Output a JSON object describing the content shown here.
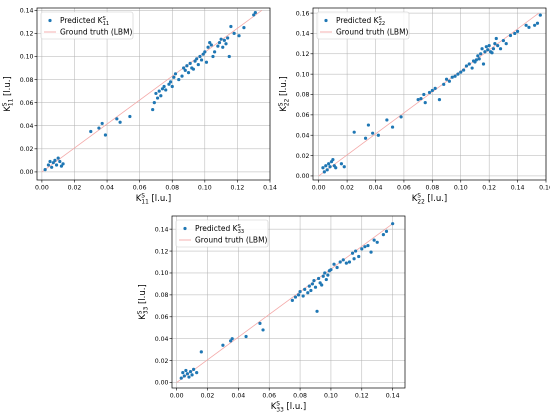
{
  "colors": {
    "points": "#1f77b4",
    "line": "#f4a9a8",
    "grid": "#b0b0b0"
  },
  "chart_data": [
    {
      "type": "scatter",
      "legend_position": "top-left",
      "grid": true,
      "xlabel": {
        "main": "K",
        "sup": "S",
        "sub": "11",
        "unit": "[l.u.]"
      },
      "ylabel": {
        "main": "K",
        "sup": "S",
        "sub": "11",
        "unit": "[l.u.]"
      },
      "legend": {
        "points_main": "Predicted K",
        "points_sup": "S",
        "points_sub": "11",
        "line": "Ground truth (LBM)"
      },
      "xlim": [
        -0.003,
        0.14
      ],
      "ylim": [
        -0.007,
        0.142
      ],
      "xticks": [
        "0.00",
        "0.02",
        "0.04",
        "0.06",
        "0.08",
        "0.10",
        "0.12",
        "0.14"
      ],
      "yticks": [
        "0.00",
        "0.02",
        "0.04",
        "0.06",
        "0.08",
        "0.10",
        "0.12",
        "0.14"
      ],
      "line": [
        [
          0,
          0
        ],
        [
          0.135,
          0.14
        ]
      ],
      "points": [
        [
          0.002,
          0.002
        ],
        [
          0.004,
          0.006
        ],
        [
          0.005,
          0.009
        ],
        [
          0.006,
          0.004
        ],
        [
          0.007,
          0.008
        ],
        [
          0.008,
          0.01
        ],
        [
          0.009,
          0.006
        ],
        [
          0.01,
          0.012
        ],
        [
          0.011,
          0.009
        ],
        [
          0.012,
          0.005
        ],
        [
          0.013,
          0.007
        ],
        [
          0.03,
          0.035
        ],
        [
          0.035,
          0.038
        ],
        [
          0.037,
          0.042
        ],
        [
          0.039,
          0.032
        ],
        [
          0.046,
          0.046
        ],
        [
          0.048,
          0.043
        ],
        [
          0.054,
          0.048
        ],
        [
          0.068,
          0.054
        ],
        [
          0.069,
          0.06
        ],
        [
          0.07,
          0.068
        ],
        [
          0.071,
          0.064
        ],
        [
          0.072,
          0.07
        ],
        [
          0.073,
          0.066
        ],
        [
          0.074,
          0.072
        ],
        [
          0.075,
          0.074
        ],
        [
          0.076,
          0.071
        ],
        [
          0.078,
          0.076
        ],
        [
          0.079,
          0.078
        ],
        [
          0.08,
          0.074
        ],
        [
          0.081,
          0.082
        ],
        [
          0.082,
          0.085
        ],
        [
          0.084,
          0.08
        ],
        [
          0.086,
          0.083
        ],
        [
          0.087,
          0.09
        ],
        [
          0.088,
          0.088
        ],
        [
          0.089,
          0.092
        ],
        [
          0.09,
          0.086
        ],
        [
          0.091,
          0.094
        ],
        [
          0.092,
          0.09
        ],
        [
          0.093,
          0.089
        ],
        [
          0.094,
          0.096
        ],
        [
          0.095,
          0.098
        ],
        [
          0.096,
          0.093
        ],
        [
          0.097,
          0.1
        ],
        [
          0.098,
          0.097
        ],
        [
          0.099,
          0.102
        ],
        [
          0.1,
          0.104
        ],
        [
          0.101,
          0.095
        ],
        [
          0.102,
          0.108
        ],
        [
          0.103,
          0.112
        ],
        [
          0.104,
          0.11
        ],
        [
          0.105,
          0.1
        ],
        [
          0.106,
          0.104
        ],
        [
          0.108,
          0.109
        ],
        [
          0.109,
          0.112
        ],
        [
          0.11,
          0.115
        ],
        [
          0.111,
          0.108
        ],
        [
          0.112,
          0.114
        ],
        [
          0.113,
          0.111
        ],
        [
          0.114,
          0.116
        ],
        [
          0.115,
          0.1
        ],
        [
          0.116,
          0.126
        ],
        [
          0.118,
          0.12
        ],
        [
          0.121,
          0.118
        ],
        [
          0.124,
          0.125
        ],
        [
          0.13,
          0.136
        ],
        [
          0.131,
          0.138
        ]
      ]
    },
    {
      "type": "scatter",
      "legend_position": "top-left",
      "grid": true,
      "xlabel": {
        "main": "K",
        "sup": "S",
        "sub": "22",
        "unit": "[l.u.]"
      },
      "ylabel": {
        "main": "K",
        "sup": "S",
        "sub": "22",
        "unit": "[l.u.]"
      },
      "legend": {
        "points_main": "Predicted K",
        "points_sup": "S",
        "points_sub": "22",
        "line": "Ground truth (LBM)"
      },
      "xlim": [
        -0.004,
        0.16
      ],
      "ylim": [
        -0.004,
        0.165
      ],
      "xticks": [
        "0.00",
        "0.02",
        "0.04",
        "0.06",
        "0.08",
        "0.10",
        "0.12",
        "0.14",
        "0.16"
      ],
      "yticks": [
        "0.00",
        "0.02",
        "0.04",
        "0.06",
        "0.08",
        "0.10",
        "0.12",
        "0.14",
        "0.16"
      ],
      "line": [
        [
          0,
          0
        ],
        [
          0.155,
          0.16
        ]
      ],
      "points": [
        [
          0.003,
          0.008
        ],
        [
          0.004,
          0.004
        ],
        [
          0.005,
          0.01
        ],
        [
          0.006,
          0.006
        ],
        [
          0.007,
          0.012
        ],
        [
          0.008,
          0.009
        ],
        [
          0.009,
          0.014
        ],
        [
          0.01,
          0.016
        ],
        [
          0.011,
          0.01
        ],
        [
          0.012,
          0.008
        ],
        [
          0.016,
          0.012
        ],
        [
          0.018,
          0.009
        ],
        [
          0.025,
          0.043
        ],
        [
          0.033,
          0.037
        ],
        [
          0.035,
          0.05
        ],
        [
          0.038,
          0.042
        ],
        [
          0.042,
          0.04
        ],
        [
          0.048,
          0.055
        ],
        [
          0.052,
          0.048
        ],
        [
          0.058,
          0.058
        ],
        [
          0.07,
          0.075
        ],
        [
          0.072,
          0.076
        ],
        [
          0.074,
          0.08
        ],
        [
          0.075,
          0.072
        ],
        [
          0.078,
          0.082
        ],
        [
          0.08,
          0.084
        ],
        [
          0.082,
          0.086
        ],
        [
          0.085,
          0.075
        ],
        [
          0.088,
          0.09
        ],
        [
          0.09,
          0.095
        ],
        [
          0.092,
          0.093
        ],
        [
          0.094,
          0.097
        ],
        [
          0.096,
          0.098
        ],
        [
          0.098,
          0.1
        ],
        [
          0.1,
          0.102
        ],
        [
          0.102,
          0.104
        ],
        [
          0.104,
          0.108
        ],
        [
          0.106,
          0.11
        ],
        [
          0.108,
          0.106
        ],
        [
          0.109,
          0.113
        ],
        [
          0.11,
          0.112
        ],
        [
          0.111,
          0.114
        ],
        [
          0.112,
          0.118
        ],
        [
          0.113,
          0.115
        ],
        [
          0.114,
          0.12
        ],
        [
          0.115,
          0.125
        ],
        [
          0.116,
          0.11
        ],
        [
          0.117,
          0.122
        ],
        [
          0.118,
          0.127
        ],
        [
          0.119,
          0.124
        ],
        [
          0.12,
          0.128
        ],
        [
          0.121,
          0.122
        ],
        [
          0.122,
          0.121
        ],
        [
          0.123,
          0.125
        ],
        [
          0.124,
          0.13
        ],
        [
          0.125,
          0.135
        ],
        [
          0.126,
          0.128
        ],
        [
          0.128,
          0.125
        ],
        [
          0.13,
          0.133
        ],
        [
          0.132,
          0.13
        ],
        [
          0.135,
          0.138
        ],
        [
          0.138,
          0.14
        ],
        [
          0.14,
          0.142
        ],
        [
          0.146,
          0.148
        ],
        [
          0.148,
          0.146
        ],
        [
          0.152,
          0.148
        ],
        [
          0.154,
          0.15
        ],
        [
          0.156,
          0.158
        ]
      ]
    },
    {
      "type": "scatter",
      "legend_position": "top-left",
      "grid": true,
      "xlabel": {
        "main": "K",
        "sup": "S",
        "sub": "33",
        "unit": "[l.u.]"
      },
      "ylabel": {
        "main": "K",
        "sup": "S",
        "sub": "33",
        "unit": "[l.u.]"
      },
      "legend": {
        "points_main": "Predicted K",
        "points_sup": "S",
        "points_sub": "33",
        "line": "Ground truth (LBM)"
      },
      "xlim": [
        -0.003,
        0.148
      ],
      "ylim": [
        -0.005,
        0.152
      ],
      "xticks": [
        "0.00",
        "0.02",
        "0.04",
        "0.06",
        "0.08",
        "0.10",
        "0.12",
        "0.14"
      ],
      "yticks": [
        "0.00",
        "0.02",
        "0.04",
        "0.06",
        "0.08",
        "0.10",
        "0.12",
        "0.14"
      ],
      "line": [
        [
          0,
          0
        ],
        [
          0.14,
          0.145
        ]
      ],
      "points": [
        [
          0.003,
          0.004
        ],
        [
          0.004,
          0.009
        ],
        [
          0.005,
          0.006
        ],
        [
          0.006,
          0.011
        ],
        [
          0.007,
          0.008
        ],
        [
          0.008,
          0.005
        ],
        [
          0.009,
          0.01
        ],
        [
          0.01,
          0.007
        ],
        [
          0.011,
          0.012
        ],
        [
          0.013,
          0.009
        ],
        [
          0.016,
          0.028
        ],
        [
          0.03,
          0.034
        ],
        [
          0.035,
          0.038
        ],
        [
          0.036,
          0.04
        ],
        [
          0.045,
          0.042
        ],
        [
          0.054,
          0.054
        ],
        [
          0.056,
          0.048
        ],
        [
          0.075,
          0.075
        ],
        [
          0.077,
          0.078
        ],
        [
          0.079,
          0.08
        ],
        [
          0.08,
          0.083
        ],
        [
          0.082,
          0.079
        ],
        [
          0.083,
          0.085
        ],
        [
          0.085,
          0.082
        ],
        [
          0.086,
          0.088
        ],
        [
          0.087,
          0.084
        ],
        [
          0.088,
          0.09
        ],
        [
          0.089,
          0.093
        ],
        [
          0.09,
          0.087
        ],
        [
          0.091,
          0.065
        ],
        [
          0.092,
          0.095
        ],
        [
          0.093,
          0.091
        ],
        [
          0.094,
          0.089
        ],
        [
          0.095,
          0.097
        ],
        [
          0.096,
          0.1
        ],
        [
          0.097,
          0.094
        ],
        [
          0.098,
          0.098
        ],
        [
          0.099,
          0.102
        ],
        [
          0.1,
          0.103
        ],
        [
          0.102,
          0.108
        ],
        [
          0.104,
          0.105
        ],
        [
          0.106,
          0.11
        ],
        [
          0.108,
          0.112
        ],
        [
          0.11,
          0.109
        ],
        [
          0.112,
          0.11
        ],
        [
          0.114,
          0.118
        ],
        [
          0.115,
          0.113
        ],
        [
          0.116,
          0.12
        ],
        [
          0.118,
          0.115
        ],
        [
          0.12,
          0.122
        ],
        [
          0.122,
          0.124
        ],
        [
          0.124,
          0.125
        ],
        [
          0.126,
          0.119
        ],
        [
          0.128,
          0.13
        ],
        [
          0.13,
          0.128
        ],
        [
          0.134,
          0.135
        ],
        [
          0.136,
          0.138
        ],
        [
          0.14,
          0.145
        ]
      ]
    }
  ]
}
